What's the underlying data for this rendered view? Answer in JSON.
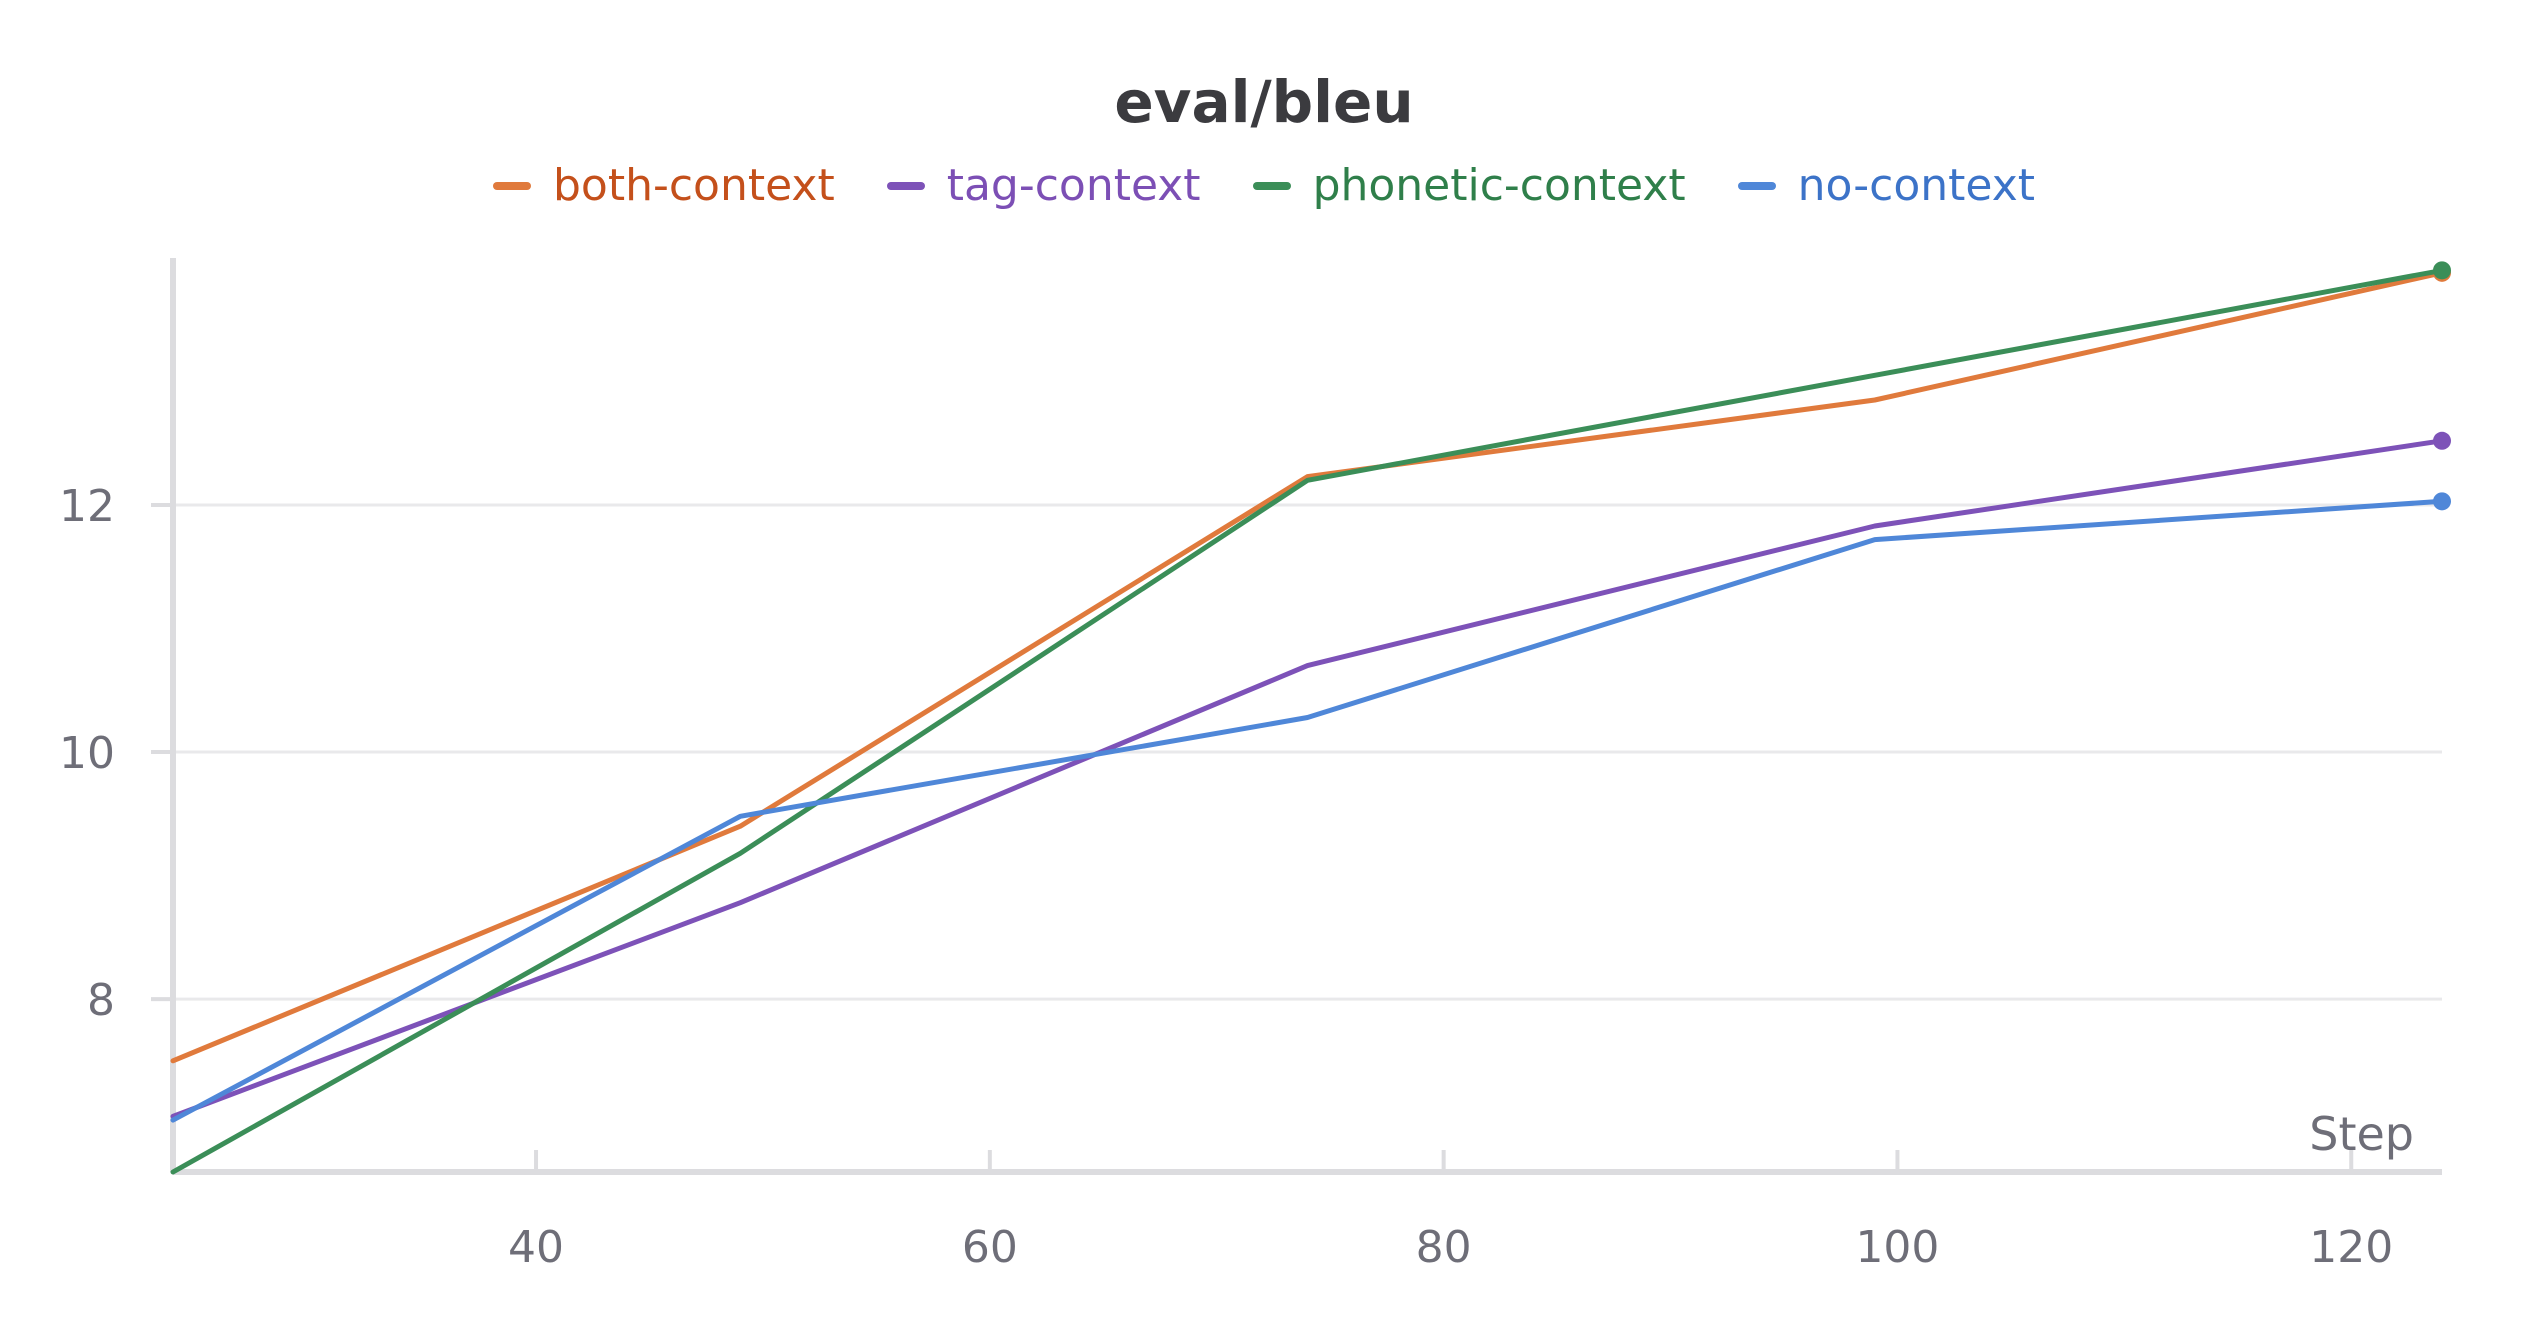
{
  "chart_data": {
    "type": "line",
    "title": "eval/bleu",
    "xlabel": "Step",
    "ylabel": "",
    "xlim": [
      24,
      124
    ],
    "ylim": [
      6.6,
      14
    ],
    "xticks": [
      40,
      60,
      80,
      100,
      120
    ],
    "yticks": [
      8,
      10,
      12
    ],
    "grid": true,
    "legend_position": "top-center",
    "series": [
      {
        "name": "both-context",
        "color": "#e07a3c",
        "text_color": "#c4501b",
        "x": [
          24,
          49,
          74,
          99,
          124
        ],
        "y": [
          7.5,
          9.4,
          12.23,
          12.85,
          13.88
        ]
      },
      {
        "name": "tag-context",
        "color": "#7d52b8",
        "text_color": "#7c4fb5",
        "x": [
          24,
          49,
          74,
          99,
          124
        ],
        "y": [
          7.05,
          8.78,
          10.7,
          11.83,
          12.52
        ]
      },
      {
        "name": "phonetic-context",
        "color": "#3b8e58",
        "text_color": "#2f7f4a",
        "x": [
          24,
          49,
          74,
          99,
          124
        ],
        "y": [
          6.6,
          9.18,
          12.2,
          13.05,
          13.9
        ]
      },
      {
        "name": "no-context",
        "color": "#4f87d8",
        "text_color": "#3c73c8",
        "x": [
          24,
          49,
          74,
          99,
          124
        ],
        "y": [
          7.02,
          9.48,
          10.28,
          11.72,
          12.03
        ]
      }
    ]
  }
}
